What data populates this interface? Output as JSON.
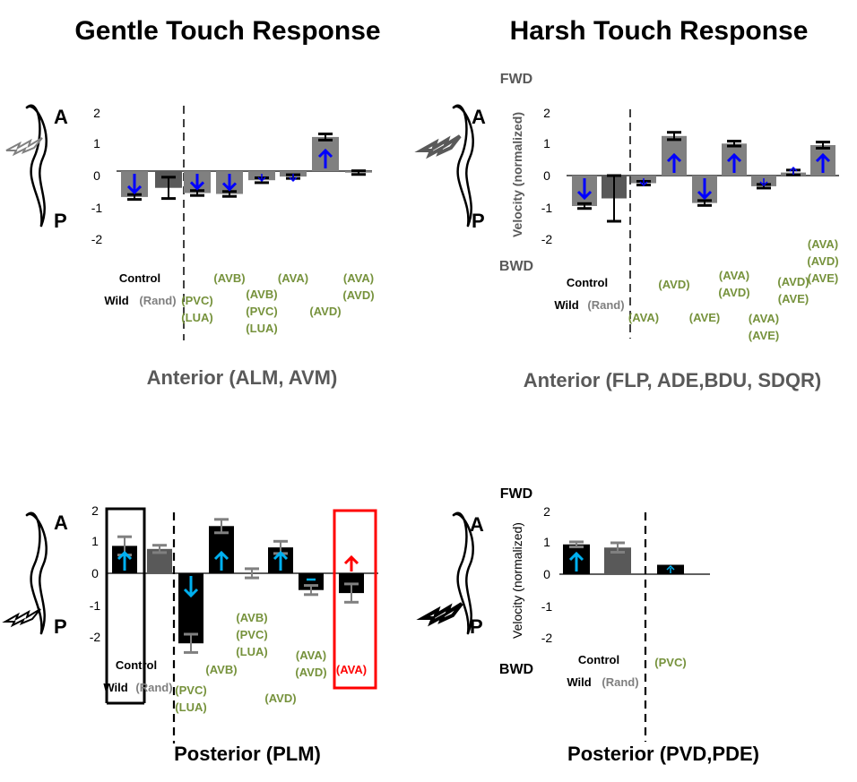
{
  "titles": {
    "gentle": "Gentle Touch Response",
    "harsh": "Harsh Touch Response"
  },
  "chart_data": [
    {
      "type": "bar",
      "subtitle": "Anterior (ALM, AVM)",
      "ylim": [
        -2,
        2
      ],
      "yticks": [
        "2",
        "1",
        "0",
        "-1",
        "-2"
      ],
      "labels": {
        "control": "Control",
        "wild": "Wild",
        "rand": "(Rand)"
      },
      "worm_labels": [
        "A",
        "P"
      ],
      "bars": [
        {
          "value": -0.85,
          "err": 0.08,
          "color": "#808080",
          "arrow": "down",
          "arrow_color": "#0000ff",
          "label": ""
        },
        {
          "value": -0.55,
          "err": 0.35,
          "color": "#595959",
          "arrow": "",
          "arrow_color": "",
          "label": ""
        },
        {
          "value": -0.72,
          "err": 0.08,
          "color": "#808080",
          "arrow": "down",
          "arrow_color": "#0000ff",
          "label": "(PVC)\n(LUA)"
        },
        {
          "value": -0.75,
          "err": 0.08,
          "color": "#808080",
          "arrow": "down",
          "arrow_color": "#0000ff",
          "label": "(AVB)"
        },
        {
          "value": -0.3,
          "err": 0.08,
          "color": "#808080",
          "arrow": "down-small",
          "arrow_color": "#0000ff",
          "label": "(AVB)\n(PVC)\n(LUA)"
        },
        {
          "value": -0.18,
          "err": 0.06,
          "color": "#808080",
          "arrow": "down-small",
          "arrow_color": "#0000ff",
          "label": "(AVA)"
        },
        {
          "value": 1.12,
          "err": 0.1,
          "color": "#808080",
          "arrow": "up",
          "arrow_color": "#0000ff",
          "label": "(AVD)"
        },
        {
          "value": -0.05,
          "err": 0.06,
          "color": "#808080",
          "arrow": "",
          "arrow_color": "",
          "label": "(AVA)\n(AVD)"
        }
      ]
    },
    {
      "type": "bar",
      "subtitle": "Anterior (FLP, ADE,BDU, SDQR)",
      "ylabel": "Velocity (normalized)",
      "fwd_label": "FWD",
      "bwd_label": "BWD",
      "ylim": [
        -2,
        2
      ],
      "yticks": [
        "2",
        "1",
        "0",
        "-1",
        "-2"
      ],
      "labels": {
        "control": "Control",
        "wild": "Wild",
        "rand": "(Rand)"
      },
      "worm_labels": [
        "A",
        "P"
      ],
      "bars": [
        {
          "value": -1.0,
          "err": 0.08,
          "color": "#808080",
          "arrow": "down",
          "arrow_color": "#0000ff",
          "label": ""
        },
        {
          "value": -0.75,
          "err": 0.75,
          "color": "#595959",
          "arrow": "",
          "arrow_color": "",
          "label": ""
        },
        {
          "value": -0.25,
          "err": 0.06,
          "color": "#808080",
          "arrow": "down-small",
          "arrow_color": "#0000ff",
          "label": "(AVA)"
        },
        {
          "value": 1.3,
          "err": 0.12,
          "color": "#808080",
          "arrow": "up",
          "arrow_color": "#0000ff",
          "label": "(AVD)"
        },
        {
          "value": -0.9,
          "err": 0.08,
          "color": "#808080",
          "arrow": "down",
          "arrow_color": "#0000ff",
          "label": "(AVE)"
        },
        {
          "value": 1.05,
          "err": 0.08,
          "color": "#808080",
          "arrow": "up",
          "arrow_color": "#0000ff",
          "label": "(AVA)\n(AVD)"
        },
        {
          "value": -0.35,
          "err": 0.06,
          "color": "#808080",
          "arrow": "down-small",
          "arrow_color": "#0000ff",
          "label": "(AVA)\n(AVE)"
        },
        {
          "value": 0.1,
          "err": 0.08,
          "color": "#808080",
          "arrow": "up-small",
          "arrow_color": "#0000ff",
          "label": "(AVD)\n(AVE)"
        },
        {
          "value": 1.0,
          "err": 0.1,
          "color": "#808080",
          "arrow": "up",
          "arrow_color": "#0000ff",
          "label": "(AVA)\n(AVD)\n(AVE)"
        }
      ]
    },
    {
      "type": "bar",
      "subtitle": "Posterior (PLM)",
      "ylim": [
        -2,
        2
      ],
      "yticks": [
        "2",
        "1",
        "0",
        "-1",
        "-2"
      ],
      "labels": {
        "control": "Control",
        "wild": "Wild",
        "rand": "(Rand)"
      },
      "worm_labels": [
        "A",
        "P"
      ],
      "bars": [
        {
          "value": 0.9,
          "err": 0.3,
          "color": "#000000",
          "arrow": "up",
          "arrow_color": "#00b0f0",
          "label": ""
        },
        {
          "value": 0.8,
          "err": 0.12,
          "color": "#595959",
          "arrow": "",
          "arrow_color": "",
          "label": ""
        },
        {
          "value": -2.3,
          "err": 0.3,
          "color": "#000000",
          "arrow": "down",
          "arrow_color": "#00b0f0",
          "label": "(PVC)\n(LUA)"
        },
        {
          "value": 1.55,
          "err": 0.22,
          "color": "#000000",
          "arrow": "up",
          "arrow_color": "#00b0f0",
          "label": "(AVB)"
        },
        {
          "value": 0.0,
          "err": 0.15,
          "color": "#000000",
          "arrow": "",
          "arrow_color": "",
          "label": "(AVB)\n(PVC)\n(LUA)"
        },
        {
          "value": 0.85,
          "err": 0.2,
          "color": "#000000",
          "arrow": "up",
          "arrow_color": "#00b0f0",
          "label": "(AVD)"
        },
        {
          "value": -0.55,
          "err": 0.15,
          "color": "#000000",
          "arrow": "dash",
          "arrow_color": "#00b0f0",
          "label": "(AVA)\n(AVD)"
        },
        {
          "value": -0.65,
          "err": 0.3,
          "color": "#000000",
          "arrow": "up-red",
          "arrow_color": "#ff0000",
          "label": "(AVA)"
        }
      ]
    },
    {
      "type": "bar",
      "subtitle": "Posterior (PVD,PDE)",
      "ylabel": "Velocity (normalized)",
      "fwd_label": "FWD",
      "bwd_label": "BWD",
      "ylim": [
        -2,
        2
      ],
      "yticks": [
        "2",
        "1",
        "0",
        "-1",
        "-2"
      ],
      "labels": {
        "control": "Control",
        "wild": "Wild",
        "rand": "(Rand)"
      },
      "worm_labels": [
        "A",
        "P"
      ],
      "bars": [
        {
          "value": 0.95,
          "err": 0.08,
          "color": "#000000",
          "arrow": "up",
          "arrow_color": "#00b0f0",
          "label": ""
        },
        {
          "value": 0.85,
          "err": 0.15,
          "color": "#595959",
          "arrow": "",
          "arrow_color": "",
          "label": ""
        },
        {
          "value": 0.3,
          "err": 0.0,
          "color": "#000000",
          "arrow": "up-small",
          "arrow_color": "#00b0f0",
          "label": "(PVC)"
        }
      ]
    }
  ]
}
